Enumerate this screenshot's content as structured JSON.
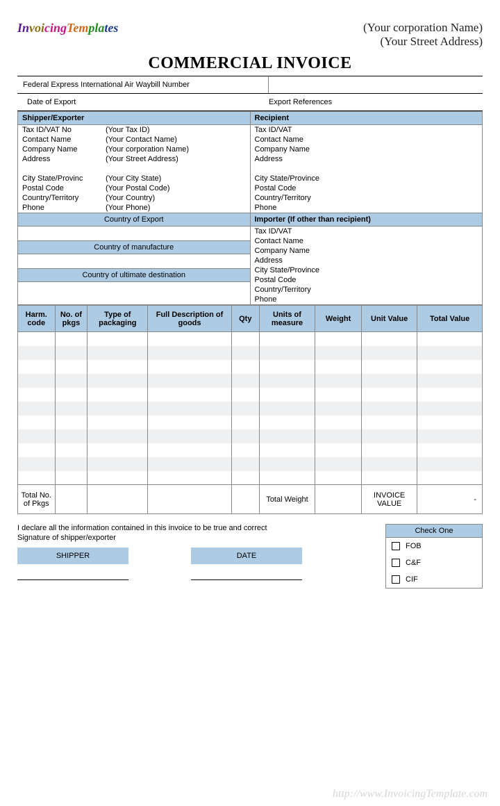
{
  "header": {
    "logo_prefix": "Invoicing",
    "logo_suffix": "Templates",
    "corp_name": "(Your corporation  Name)",
    "street": "(Your Street Address)",
    "title": "COMMERCIAL INVOICE"
  },
  "meta": {
    "waybill_label": "Federal Express International Air Waybill Number",
    "date_of_export_label": "Date of Export",
    "export_refs_label": "Export References"
  },
  "shipper": {
    "header": "Shipper/Exporter",
    "fields": [
      {
        "k": "Tax ID/VAT No",
        "v": "(Your Tax ID)"
      },
      {
        "k": "Contact Name",
        "v": "(Your Contact Name)"
      },
      {
        "k": "Company Name",
        "v": "(Your corporation  Name)"
      },
      {
        "k": "Address",
        "v": "(Your Street Address)"
      },
      {
        "k": "",
        "v": ""
      },
      {
        "k": "City  State/Provinc",
        "v": "(Your City State)"
      },
      {
        "k": "Postal Code",
        "v": "(Your Postal Code)"
      },
      {
        "k": "Country/Territory",
        "v": "(Your Country)"
      },
      {
        "k": "Phone",
        "v": "(Your Phone)"
      }
    ]
  },
  "recipient": {
    "header": "Recipient",
    "fields": [
      {
        "k": "Tax ID/VAT",
        "v": ""
      },
      {
        "k": "Contact Name",
        "v": ""
      },
      {
        "k": "Company Name",
        "v": ""
      },
      {
        "k": "Address",
        "v": ""
      },
      {
        "k": "",
        "v": ""
      },
      {
        "k": "City  State/Province",
        "v": ""
      },
      {
        "k": "Postal Code",
        "v": ""
      },
      {
        "k": "Country/Territory",
        "v": ""
      },
      {
        "k": "Phone",
        "v": ""
      }
    ]
  },
  "left_sections": {
    "country_export": "Country of Export",
    "country_manufacture": "Country of manufacture",
    "country_destination": "Country of ultimate destination"
  },
  "importer": {
    "header": "Importer (If other than recipient)",
    "fields": [
      {
        "k": "Tax ID/VAT",
        "v": ""
      },
      {
        "k": "Contact Name",
        "v": ""
      },
      {
        "k": "Company Name",
        "v": ""
      },
      {
        "k": "Address",
        "v": ""
      },
      {
        "k": "City  State/Province",
        "v": ""
      },
      {
        "k": "Postal Code",
        "v": ""
      },
      {
        "k": "Country/Territory",
        "v": ""
      },
      {
        "k": "Phone",
        "v": ""
      }
    ]
  },
  "items_table": {
    "columns": [
      "Harm. code",
      "No. of pkgs",
      "Type of packaging",
      "Full Description of goods",
      "Qty",
      "Units of measure",
      "Weight",
      "Unit Value",
      "Total Value"
    ],
    "col_widths_pct": [
      8,
      7,
      13,
      18,
      6,
      12,
      10,
      12,
      14
    ],
    "row_count": 11,
    "totals": {
      "total_pkgs_label": "Total No. of Pkgs",
      "total_weight_label": "Total Weight",
      "invoice_value_label": "INVOICE VALUE",
      "invoice_value": "-"
    }
  },
  "footer": {
    "declaration": "I declare all the information contained in this invoice to be true and correct",
    "signature_label": "Signature of shipper/exporter",
    "shipper_box": "SHIPPER",
    "date_box": "DATE",
    "check_one_header": "Check One",
    "check_options": [
      "FOB",
      "C&F",
      "CIF"
    ]
  },
  "watermark": "http://www.InvoicingTemplate.com",
  "colors": {
    "header_bg": "#aecbe4",
    "stripe_bg": "#eef0f2",
    "border": "#888888"
  }
}
